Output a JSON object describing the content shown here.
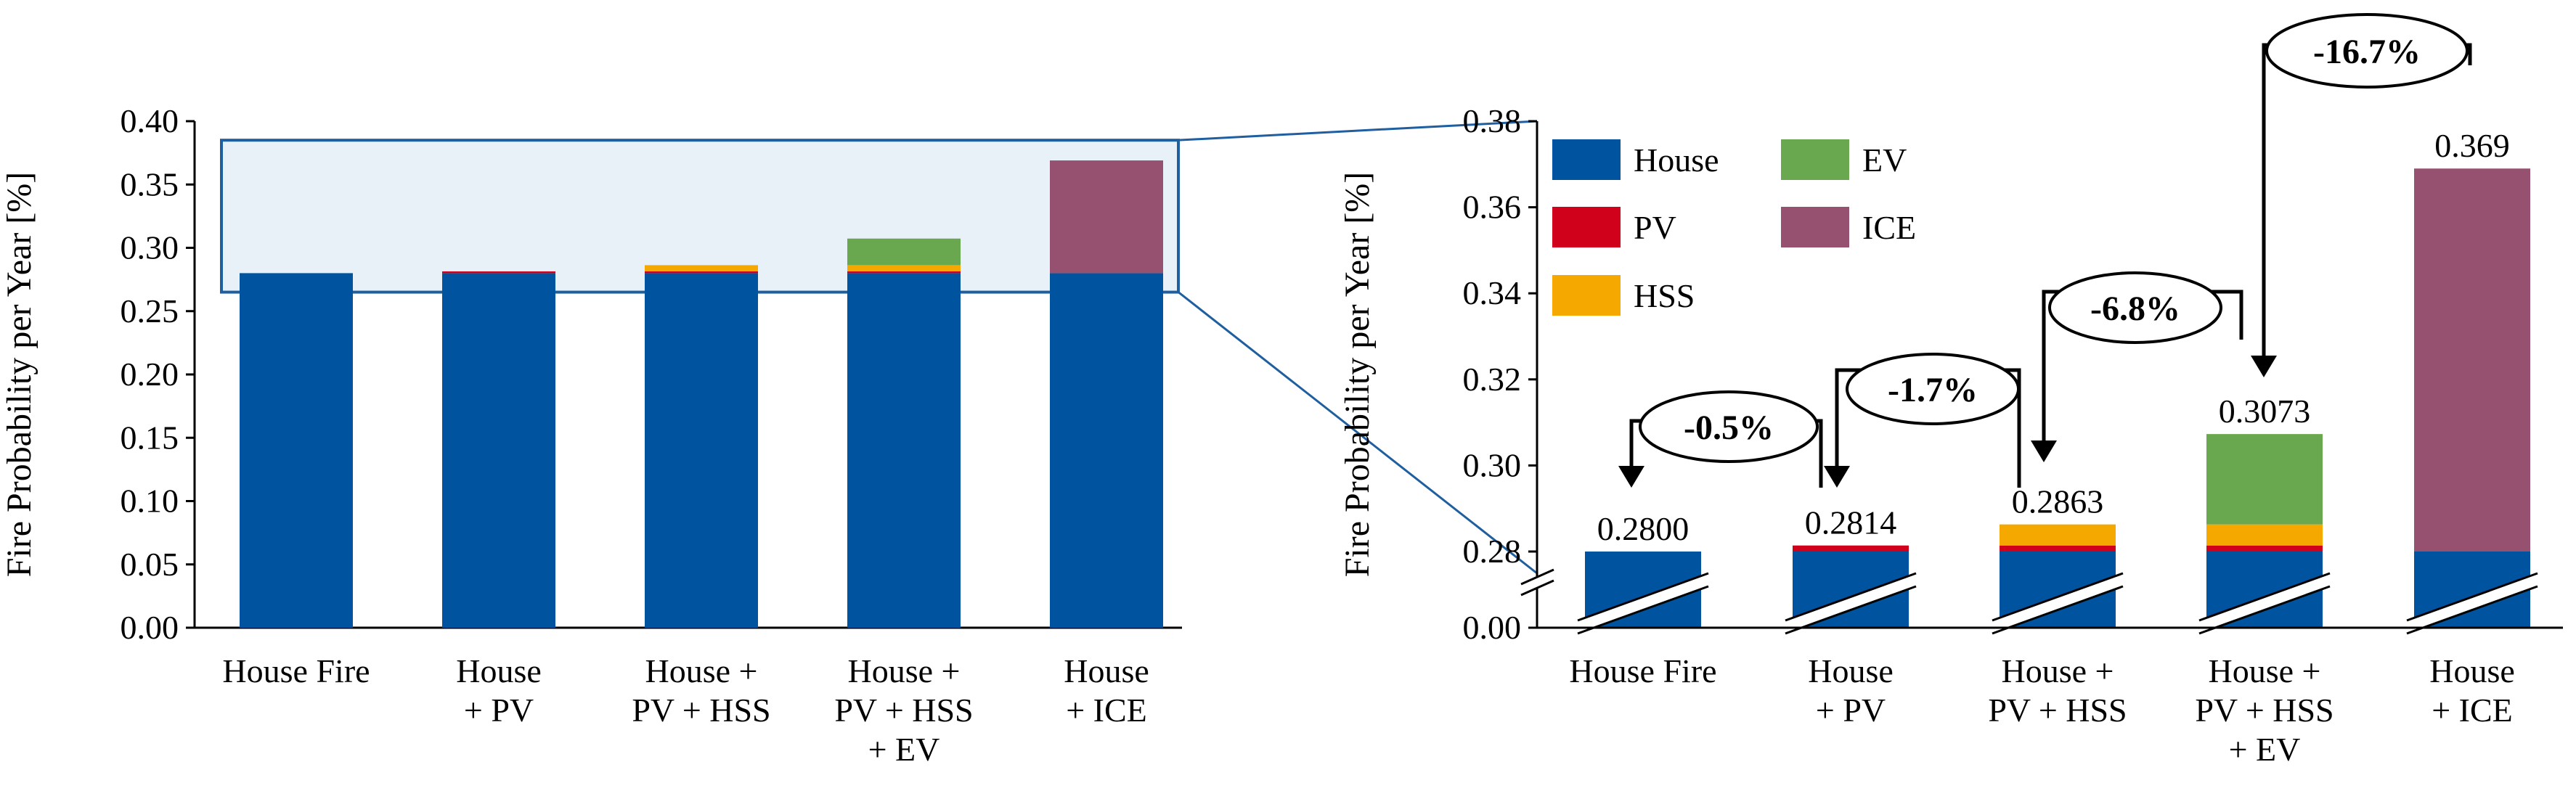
{
  "colors": {
    "House": "#00539f",
    "PV": "#d0021b",
    "HSS": "#f5a800",
    "EV": "#6aa84f",
    "ICE": "#965070",
    "zoom_fill": "#e8f0f8",
    "zoom_stroke": "#1f5f9f"
  },
  "chart_data": [
    {
      "type": "bar",
      "stacked": true,
      "title": "",
      "ylabel": "Fire Probability per Year [%]",
      "xlabel": "",
      "ylim": [
        0.0,
        0.4
      ],
      "yticks": [
        "0.00",
        "0.05",
        "0.10",
        "0.15",
        "0.20",
        "0.25",
        "0.30",
        "0.35",
        "0.40"
      ],
      "categories": [
        [
          "House Fire"
        ],
        [
          "House",
          "+ PV"
        ],
        [
          "House +",
          "PV + HSS"
        ],
        [
          "House +",
          "PV + HSS",
          "+ EV"
        ],
        [
          "House",
          "+ ICE"
        ]
      ],
      "series": [
        {
          "name": "House",
          "values": [
            0.28,
            0.28,
            0.28,
            0.28,
            0.28
          ]
        },
        {
          "name": "PV",
          "values": [
            0,
            0.0014,
            0.0014,
            0.0014,
            0
          ]
        },
        {
          "name": "HSS",
          "values": [
            0,
            0,
            0.0049,
            0.0049,
            0
          ]
        },
        {
          "name": "EV",
          "values": [
            0,
            0,
            0,
            0.021,
            0
          ]
        },
        {
          "name": "ICE",
          "values": [
            0,
            0,
            0,
            0,
            0.089
          ]
        }
      ],
      "zoom_region": [
        0.265,
        0.385
      ],
      "grid": false
    },
    {
      "type": "bar",
      "stacked": true,
      "title": "",
      "ylabel": "Fire Probability per Year [%]",
      "xlabel": "",
      "ylim": [
        0.27,
        0.38
      ],
      "axis_break": true,
      "yticks": [
        "0.00",
        "0.28",
        "0.30",
        "0.32",
        "0.34",
        "0.36",
        "0.38"
      ],
      "categories": [
        [
          "House Fire"
        ],
        [
          "House",
          "+ PV"
        ],
        [
          "House +",
          "PV + HSS"
        ],
        [
          "House +",
          "PV + HSS",
          "+ EV"
        ],
        [
          "House",
          "+ ICE"
        ]
      ],
      "series": [
        {
          "name": "House",
          "values": [
            0.28,
            0.28,
            0.28,
            0.28,
            0.28
          ]
        },
        {
          "name": "PV",
          "values": [
            0,
            0.0014,
            0.0014,
            0.0014,
            0
          ]
        },
        {
          "name": "HSS",
          "values": [
            0,
            0,
            0.0049,
            0.0049,
            0
          ]
        },
        {
          "name": "EV",
          "values": [
            0,
            0,
            0,
            0.021,
            0
          ]
        },
        {
          "name": "ICE",
          "values": [
            0,
            0,
            0,
            0,
            0.089
          ]
        }
      ],
      "totals": [
        "0.2800",
        "0.2814",
        "0.2863",
        "0.3073",
        "0.369"
      ],
      "legend": [
        "House",
        "EV",
        "PV",
        "ICE",
        "HSS"
      ],
      "legend_position": "top-left",
      "annotations": [
        "-0.5%",
        "-1.7%",
        "-6.8%",
        "-16.7%"
      ],
      "grid": false
    }
  ]
}
